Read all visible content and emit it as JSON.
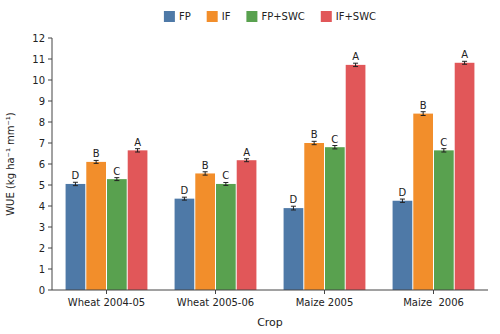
{
  "chart_data": {
    "type": "bar",
    "xlabel": "Crop",
    "ylabel": "WUE (kg ha⁻¹ mm⁻¹)",
    "categories": [
      "Wheat 2004-05",
      "Wheat 2005-06",
      "Maize 2005",
      "Maize  2006"
    ],
    "series": [
      {
        "name": "FP",
        "values": [
          5.05,
          4.35,
          3.9,
          4.25
        ],
        "errors": [
          0.08,
          0.07,
          0.09,
          0.08
        ],
        "annotations": [
          "D",
          "D",
          "D",
          "D"
        ]
      },
      {
        "name": "IF",
        "values": [
          6.1,
          5.55,
          7.0,
          8.4
        ],
        "errors": [
          0.07,
          0.08,
          0.08,
          0.09
        ],
        "annotations": [
          "B",
          "B",
          "B",
          "B"
        ]
      },
      {
        "name": "FP+SWC",
        "values": [
          5.28,
          5.05,
          6.8,
          6.65
        ],
        "errors": [
          0.07,
          0.07,
          0.08,
          0.08
        ],
        "annotations": [
          "C",
          "C",
          "C",
          "C"
        ]
      },
      {
        "name": "IF+SWC",
        "values": [
          6.65,
          6.18,
          10.72,
          10.82
        ],
        "errors": [
          0.08,
          0.07,
          0.08,
          0.07
        ],
        "annotations": [
          "A",
          "A",
          "A",
          "A"
        ]
      }
    ],
    "ylim": [
      0,
      12
    ],
    "yticks": [
      0,
      1,
      2,
      3,
      4,
      5,
      6,
      7,
      8,
      9,
      10,
      11,
      12
    ],
    "grid": false,
    "legend": "upper center"
  }
}
